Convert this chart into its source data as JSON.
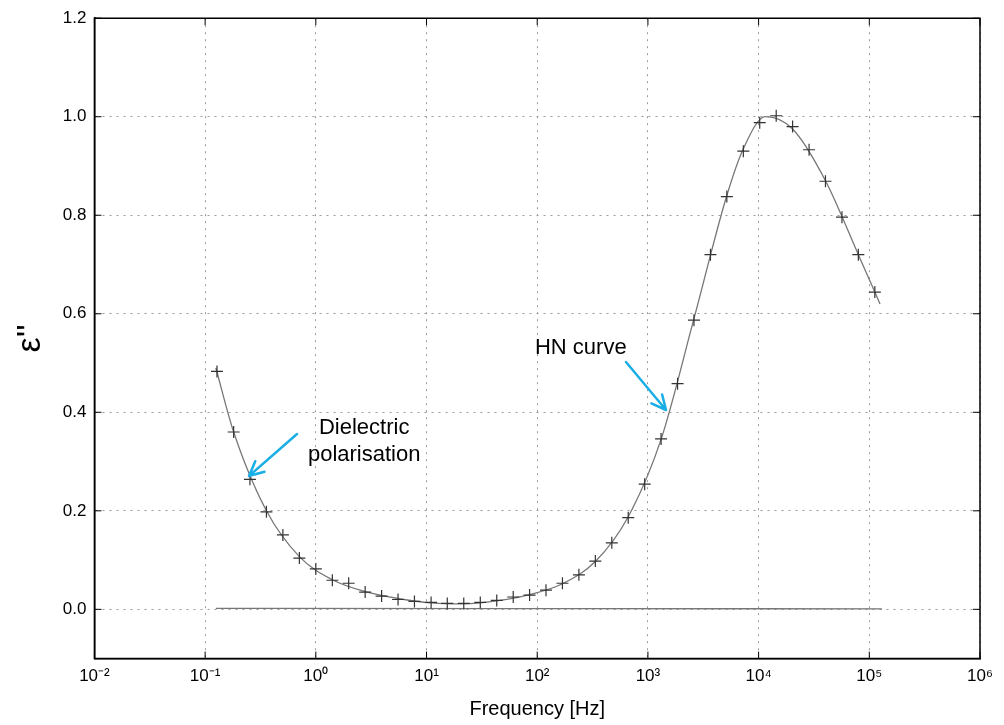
{
  "chart_data": {
    "type": "scatter",
    "xlabel": "Frequency [Hz]",
    "ylabel": "ε''",
    "log": "x",
    "grid": true,
    "xlim": [
      0.01,
      1000000
    ],
    "xticks": [
      {
        "value": 0.01,
        "label": "10⁻²"
      },
      {
        "value": 0.1,
        "label": "10⁻¹"
      },
      {
        "value": 1,
        "label": "10⁰"
      },
      {
        "value": 10,
        "label": "10¹"
      },
      {
        "value": 100,
        "label": "10²"
      },
      {
        "value": 1000,
        "label": "10³"
      },
      {
        "value": 10000,
        "label": "10⁴"
      },
      {
        "value": 100000,
        "label": "10⁵"
      },
      {
        "value": 1000000,
        "label": "10⁶"
      }
    ],
    "ylim": [
      -0.1,
      1.2
    ],
    "yticks": [
      {
        "value": 0,
        "label": "0.0"
      },
      {
        "value": 0.2,
        "label": "0.2"
      },
      {
        "value": 0.4,
        "label": "0.4"
      },
      {
        "value": 0.6,
        "label": "0.6"
      },
      {
        "value": 0.8,
        "label": "0.8"
      },
      {
        "value": 1,
        "label": "1.0"
      },
      {
        "value": 1.2,
        "label": "1.2"
      }
    ],
    "series": [
      {
        "color": "#333333",
        "marker": "cross",
        "x": [
          0.128,
          0.181,
          0.254,
          0.358,
          0.504,
          0.71,
          1.0,
          1.41,
          1.98,
          2.79,
          3.93,
          5.53,
          7.78,
          11.0,
          15.4,
          21.7,
          30.6,
          43.1,
          60.7,
          85.3,
          120,
          169,
          238,
          335,
          472,
          664,
          935,
          1315,
          1853,
          2606,
          3673,
          5164,
          7278,
          10233,
          14421,
          20277,
          28576,
          40179,
          56624,
          79616,
          112202
        ],
        "values": [
          0.483,
          0.36,
          0.264,
          0.198,
          0.151,
          0.104,
          0.082,
          0.059,
          0.053,
          0.035,
          0.027,
          0.02,
          0.016,
          0.014,
          0.012,
          0.012,
          0.014,
          0.018,
          0.025,
          0.029,
          0.039,
          0.053,
          0.07,
          0.098,
          0.135,
          0.186,
          0.254,
          0.346,
          0.458,
          0.587,
          0.72,
          0.838,
          0.93,
          0.988,
          1.002,
          0.98,
          0.933,
          0.869,
          0.796,
          0.72,
          0.644
        ]
      },
      {
        "type": "line",
        "marker": "none",
        "color": "#777777",
        "x": [
          0.125,
          0.181,
          0.358,
          0.71,
          1.41,
          2.79,
          5.53,
          11,
          21.7,
          43.1,
          85.3,
          169,
          335,
          664,
          1315,
          2606,
          5164,
          7278,
          11500,
          20277,
          40179,
          79616,
          125000
        ],
        "values": [
          0.49,
          0.36,
          0.2,
          0.107,
          0.06,
          0.036,
          0.022,
          0.013,
          0.011,
          0.017,
          0.03,
          0.052,
          0.097,
          0.188,
          0.345,
          0.59,
          0.84,
          0.935,
          1.0,
          0.975,
          0.87,
          0.72,
          0.62
        ]
      },
      {
        "type": "line",
        "marker": "none",
        "color": "#777777",
        "x": [
          0.125,
          130000
        ],
        "values": [
          0.002,
          0.001
        ]
      }
    ],
    "annotations": [
      {
        "text": "Dielectric polarisation",
        "x": 0.25,
        "y": 0.27
      },
      {
        "text": "HN curve",
        "x": 1450,
        "y": 0.405
      }
    ]
  }
}
